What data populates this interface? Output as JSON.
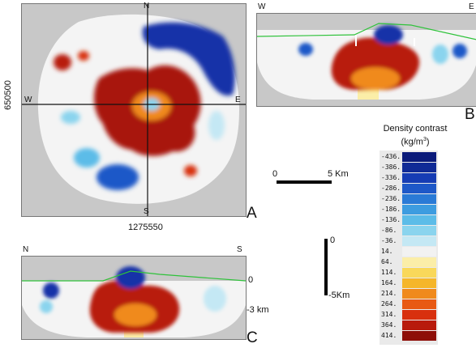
{
  "chart_data": [
    {
      "type": "heatmap",
      "panel": "A",
      "view": "map",
      "compass": {
        "north": "N",
        "south": "S",
        "west": "W",
        "east": "E"
      },
      "crosshair_coords": {
        "y_label": "650500",
        "x_label": "1275550"
      },
      "scale_bar": {
        "start": "0",
        "end": "5 Km"
      }
    },
    {
      "type": "heatmap",
      "panel": "B",
      "view": "cross-section",
      "ends": {
        "left": "W",
        "right": "E"
      }
    },
    {
      "type": "heatmap",
      "panel": "C",
      "view": "cross-section",
      "ends": {
        "left": "N",
        "right": "S"
      },
      "depth_ticks": [
        "0",
        "-3 km"
      ],
      "vertical_scale": {
        "top": "0",
        "bottom": "-5Km"
      }
    }
  ],
  "legend": {
    "title_line1": "Density contrast",
    "title_line2": "(kg/m",
    "title_sup": "3",
    "title_close": ")",
    "entries": [
      {
        "label": "-436.",
        "color": "#0a1a7a"
      },
      {
        "label": "-386.",
        "color": "#102a96"
      },
      {
        "label": "-336.",
        "color": "#163cb4"
      },
      {
        "label": "-286.",
        "color": "#1e58c8"
      },
      {
        "label": "-236.",
        "color": "#2a7ad6"
      },
      {
        "label": "-186.",
        "color": "#3d9ce0"
      },
      {
        "label": "-136.",
        "color": "#5cbce8"
      },
      {
        "label": "-86.",
        "color": "#8ad4ee"
      },
      {
        "label": "-36.",
        "color": "#c4e8f4"
      },
      {
        "label": "14.",
        "color": "#f2f2f2"
      },
      {
        "label": "64.",
        "color": "#fbeea8"
      },
      {
        "label": "114.",
        "color": "#f9d85a"
      },
      {
        "label": "164.",
        "color": "#f5b62a"
      },
      {
        "label": "214.",
        "color": "#f08a1c"
      },
      {
        "label": "264.",
        "color": "#e85a14"
      },
      {
        "label": "314.",
        "color": "#d8300e"
      },
      {
        "label": "364.",
        "color": "#b81a0c"
      },
      {
        "label": "414.",
        "color": "#8e0e08"
      }
    ]
  },
  "colors": {
    "background_gray": "#c8c8c8",
    "blob_blue": "#1233a8",
    "blob_red": "#a8160c",
    "surface_line": "#2ec23a",
    "frame": "#777777"
  }
}
